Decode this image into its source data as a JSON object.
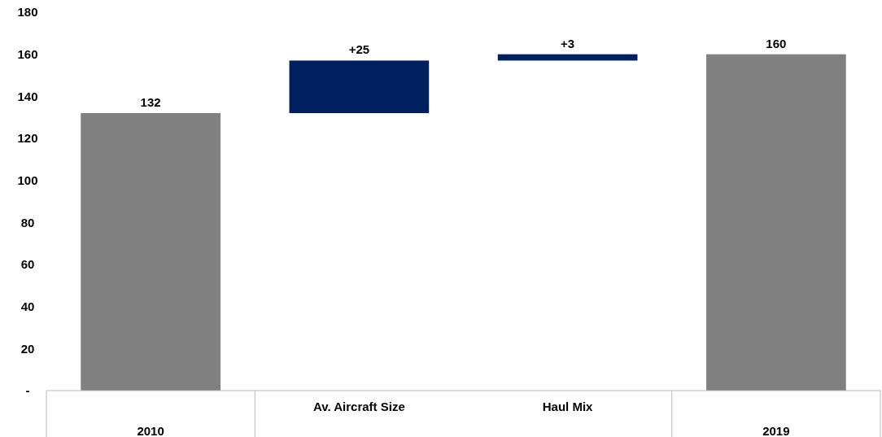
{
  "chart_data": {
    "type": "bar",
    "categories": [
      "2010",
      "Av. Aircraft Size",
      "Haul Mix",
      "2019"
    ],
    "values": [
      132,
      25,
      3,
      160
    ],
    "base": [
      0,
      132,
      157,
      0
    ],
    "colors": [
      "#808080",
      "#002060",
      "#002060",
      "#808080"
    ],
    "value_labels": [
      "132",
      "+25",
      "+3",
      "160"
    ],
    "ylim": [
      0,
      180
    ],
    "yticks": [
      {
        "value": 0,
        "label": "-"
      },
      20,
      40,
      60,
      80,
      100,
      120,
      140,
      160,
      180
    ],
    "grid": false
  }
}
